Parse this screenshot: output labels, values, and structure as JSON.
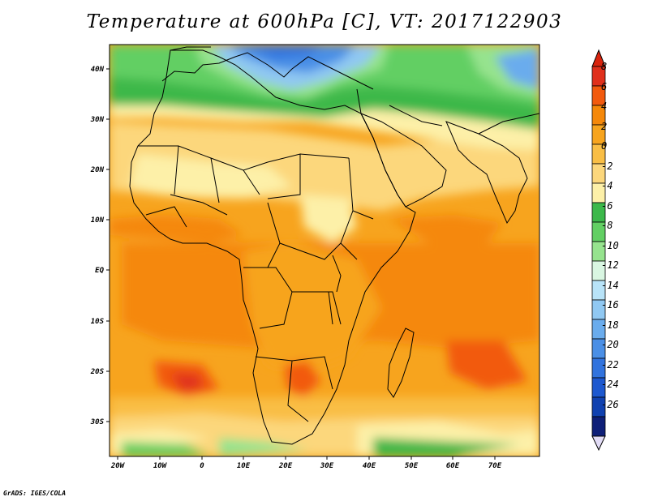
{
  "title": "Temperature at 600hPa [C], VT: 2017122903",
  "footer": "GrADS: IGES/COLA",
  "lon_ticks": [
    "20W",
    "10W",
    "0",
    "10E",
    "20E",
    "30E",
    "40E",
    "50E",
    "60E",
    "70E"
  ],
  "lat_ticks": [
    "40N",
    "30N",
    "20N",
    "10N",
    "EQ",
    "10S",
    "20S",
    "30S"
  ],
  "map_extent": {
    "lon": [
      -23,
      80
    ],
    "lat": [
      -37,
      45
    ]
  },
  "colorbar": {
    "labels": [
      "8",
      "6",
      "4",
      "2",
      "0",
      "-2",
      "-4",
      "-6",
      "-8",
      "-10",
      "-12",
      "-14",
      "-16",
      "-18",
      "-20",
      "-22",
      "-24",
      "-26"
    ],
    "colors": [
      "#e0301c",
      "#f25a0e",
      "#f5880a",
      "#f7a41e",
      "#f9be45",
      "#fcd77c",
      "#fdf0a8",
      "#3cb84a",
      "#62cf63",
      "#96e38e",
      "#d9f6e2",
      "#b8e3f8",
      "#90c8f2",
      "#6aaced",
      "#4a8fe6",
      "#3173de",
      "#1d58cf",
      "#1041b0",
      "#0e1f78"
    ],
    "top_color": "#d9240e",
    "bottom_color": "#e2dcf6"
  }
}
